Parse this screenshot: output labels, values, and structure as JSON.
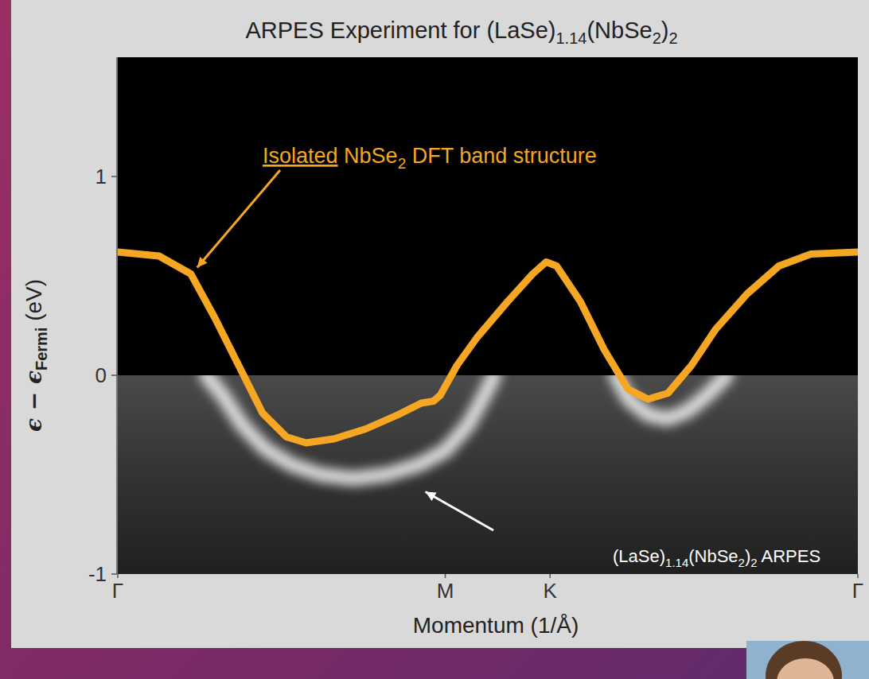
{
  "chart_data": {
    "type": "line",
    "title": "ARPES Experiment for (LaSe)1.14(NbSe2)2",
    "xlabel": "Momentum (1/Å)",
    "ylabel": "ϵ − ϵFermi (eV)",
    "xlim": [
      0,
      2.26
    ],
    "ylim": [
      -1,
      1.6
    ],
    "xticks": [
      {
        "value": 0,
        "label": "Γ"
      },
      {
        "value": 1,
        "label": "M"
      },
      {
        "value": 1.32,
        "label": "K"
      },
      {
        "value": 2.26,
        "label": "Γ"
      }
    ],
    "yticks": [
      -1,
      0,
      1
    ],
    "grid": false,
    "series": [
      {
        "name": "Isolated NbSe2 DFT band structure",
        "type": "line",
        "color": "#f5a623",
        "x": [
          0,
          0.126,
          0.223,
          0.296,
          0.369,
          0.442,
          0.515,
          0.575,
          0.66,
          0.757,
          0.854,
          0.927,
          0.964,
          0.985,
          1.036,
          1.097,
          1.19,
          1.267,
          1.308,
          1.34,
          1.413,
          1.485,
          1.558,
          1.619,
          1.68,
          1.752,
          1.825,
          1.922,
          2.019,
          2.117,
          2.26
        ],
        "values": [
          0.62,
          0.6,
          0.51,
          0.29,
          0.05,
          -0.19,
          -0.31,
          -0.34,
          -0.32,
          -0.27,
          -0.2,
          -0.14,
          -0.13,
          -0.1,
          0.05,
          0.19,
          0.37,
          0.51,
          0.57,
          0.55,
          0.37,
          0.13,
          -0.07,
          -0.12,
          -0.09,
          0.05,
          0.23,
          0.41,
          0.55,
          0.61,
          0.62
        ]
      },
      {
        "name": "(LaSe)1.14(NbSe2)2 ARPES",
        "type": "intensity",
        "color": "#ffffff",
        "x": [
          0.27,
          0.32,
          0.38,
          0.45,
          0.53,
          0.62,
          0.72,
          0.82,
          0.92,
          1.0,
          1.07,
          1.12,
          1.15,
          null,
          1.52,
          1.56,
          1.62,
          1.68,
          1.74,
          1.8,
          1.86
        ],
        "values": [
          0,
          -0.1,
          -0.25,
          -0.37,
          -0.45,
          -0.5,
          -0.52,
          -0.5,
          -0.45,
          -0.38,
          -0.25,
          -0.1,
          0,
          null,
          0,
          -0.12,
          -0.2,
          -0.22,
          -0.18,
          -0.1,
          0
        ]
      }
    ]
  }
}
